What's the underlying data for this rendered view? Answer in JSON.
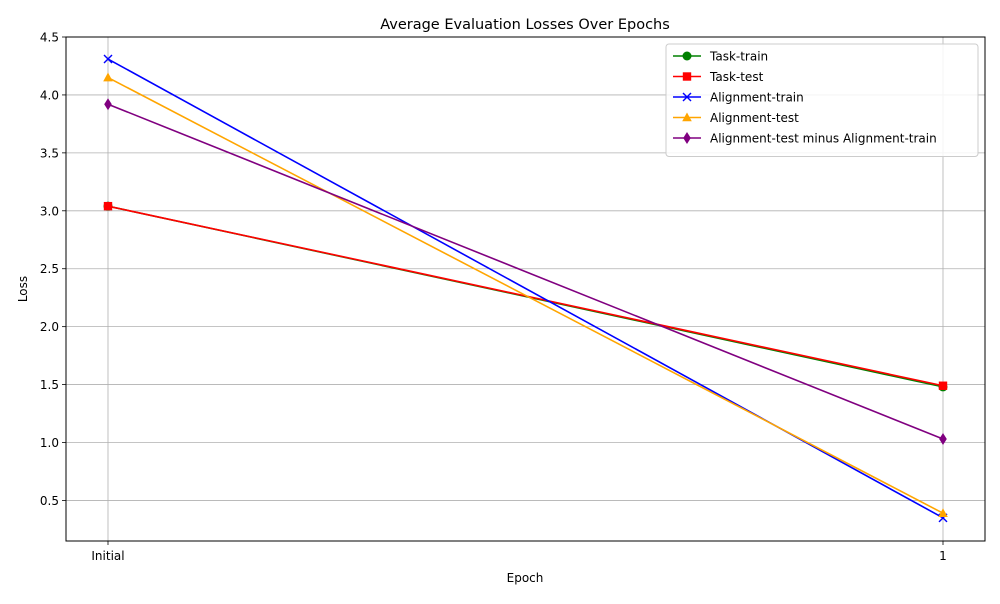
{
  "chart_data": {
    "type": "line",
    "title": "Average Evaluation Losses Over Epochs",
    "xlabel": "Epoch",
    "ylabel": "Loss",
    "categories": [
      "Initial",
      "1"
    ],
    "ylim": [
      0.15,
      4.5
    ],
    "yticks": [
      "0.5",
      "1.0",
      "1.5",
      "2.0",
      "2.5",
      "3.0",
      "3.5",
      "4.0",
      "4.5"
    ],
    "grid": true,
    "legend_position": "top-right",
    "series": [
      {
        "name": "Task-train",
        "values": [
          3.04,
          1.48
        ],
        "color": "#008000",
        "marker": "circle"
      },
      {
        "name": "Task-test",
        "values": [
          3.04,
          1.49
        ],
        "color": "#ff0000",
        "marker": "square"
      },
      {
        "name": "Alignment-train",
        "values": [
          4.31,
          0.35
        ],
        "color": "#0000ff",
        "marker": "x"
      },
      {
        "name": "Alignment-test",
        "values": [
          4.15,
          0.39
        ],
        "color": "#ffa500",
        "marker": "triangle"
      },
      {
        "name": "Alignment-test minus Alignment-train",
        "values": [
          3.92,
          1.03
        ],
        "color": "#800080",
        "marker": "diamond"
      }
    ]
  }
}
